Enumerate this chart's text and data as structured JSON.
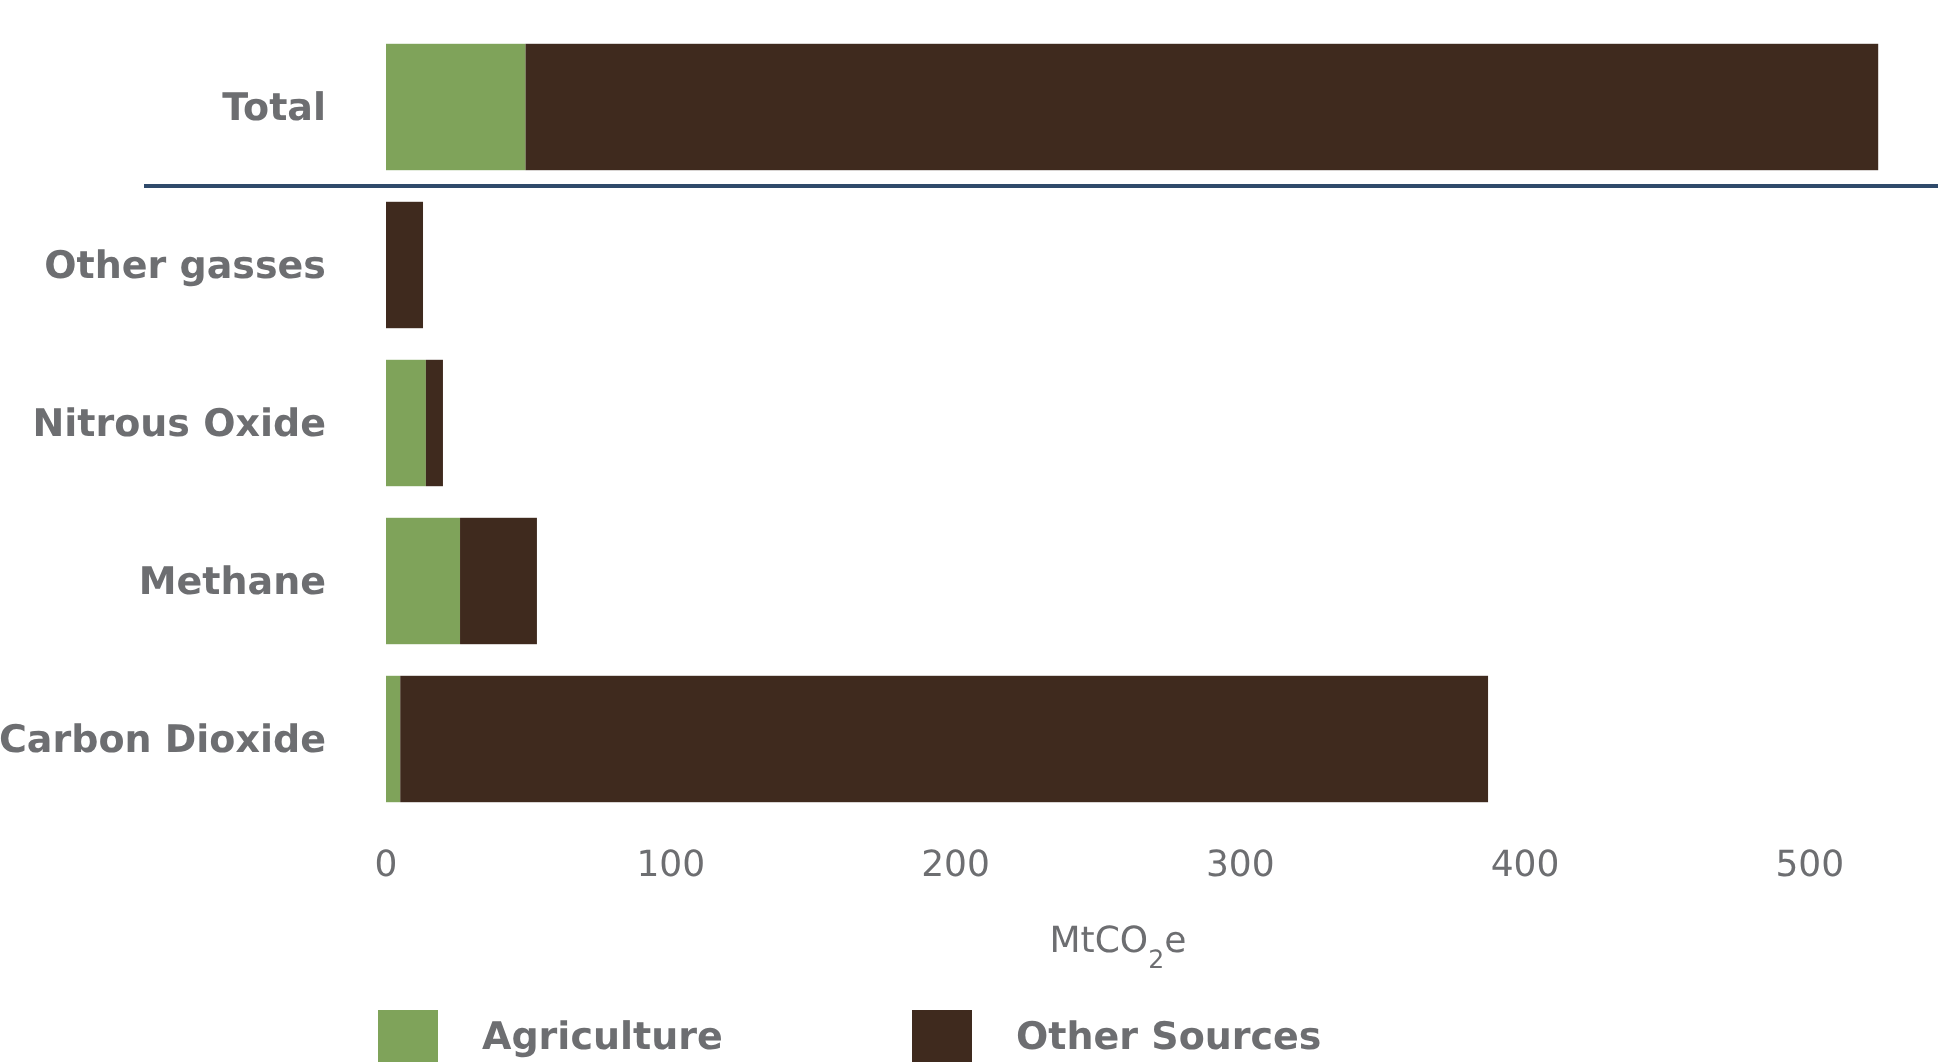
{
  "chart_data": {
    "type": "bar",
    "orientation": "horizontal",
    "stacked": true,
    "xlabel": "MtCO$_{2}$e",
    "categories": [
      "Total",
      "Other gasses",
      "Nitrous Oxide",
      "Methane",
      "Carbon Dioxide"
    ],
    "series": [
      {
        "name": "Agriculture",
        "color": "#7fa35a",
        "values": [
          49,
          0,
          14,
          26,
          5
        ]
      },
      {
        "name": "Other Sources",
        "color": "#3f2a1e",
        "values": [
          475,
          13,
          6,
          27,
          382
        ]
      }
    ],
    "xlim": [
      0,
      545
    ],
    "xticks": [
      0,
      100,
      200,
      300,
      400,
      500
    ],
    "ref_lines": [
      {
        "axis": "y",
        "value": "Total",
        "color": "#2f4a6b"
      }
    ],
    "grid": false,
    "legend": "bottom"
  }
}
